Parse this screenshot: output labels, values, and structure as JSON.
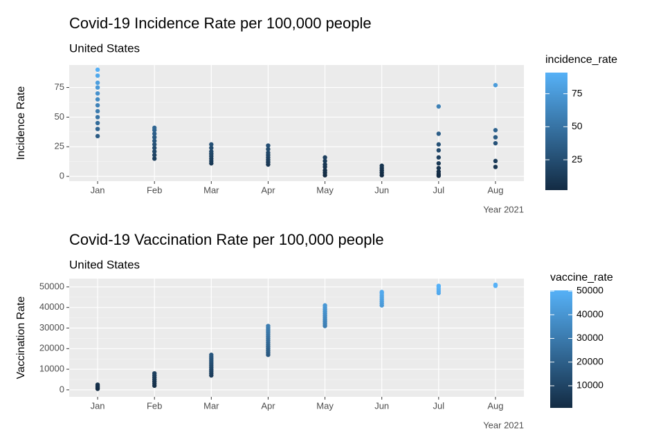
{
  "chart_data": [
    {
      "type": "scatter",
      "title": "Covid-19 Incidence Rate per 100,000 people",
      "subtitle": "United States",
      "x_label": "Year 2021",
      "y_label": "Incidence Rate",
      "categories": [
        "Jan",
        "Feb",
        "Mar",
        "Apr",
        "May",
        "Jun",
        "Jul",
        "Aug"
      ],
      "x": [
        "Jan",
        "Jan",
        "Jan",
        "Jan",
        "Jan",
        "Jan",
        "Jan",
        "Jan",
        "Jan",
        "Jan",
        "Jan",
        "Jan",
        "Feb",
        "Feb",
        "Feb",
        "Feb",
        "Feb",
        "Feb",
        "Feb",
        "Feb",
        "Feb",
        "Feb",
        "Mar",
        "Mar",
        "Mar",
        "Mar",
        "Mar",
        "Mar",
        "Mar",
        "Mar",
        "Apr",
        "Apr",
        "Apr",
        "Apr",
        "Apr",
        "Apr",
        "Apr",
        "Apr",
        "May",
        "May",
        "May",
        "May",
        "May",
        "May",
        "May",
        "Jun",
        "Jun",
        "Jun",
        "Jun",
        "Jun",
        "Jul",
        "Jul",
        "Jul",
        "Jul",
        "Jul",
        "Jul",
        "Jul",
        "Jul",
        "Jul",
        "Jul",
        "Aug",
        "Aug",
        "Aug",
        "Aug",
        "Aug",
        "Aug"
      ],
      "values": [
        34,
        40,
        45,
        50,
        55,
        60,
        65,
        70,
        75,
        79,
        85,
        90,
        15,
        18,
        21,
        24,
        27,
        30,
        33,
        36,
        39,
        41,
        11,
        13,
        15,
        17,
        19,
        21,
        24,
        27,
        10,
        12,
        14,
        16,
        18,
        20,
        23,
        26,
        1,
        3,
        5,
        8,
        10,
        13,
        16,
        1,
        3,
        5,
        7,
        9,
        0.5,
        2,
        4,
        7,
        11,
        16,
        22,
        27,
        36,
        59,
        8,
        13,
        28,
        33,
        39,
        77
      ],
      "ylim": [
        -4,
        94
      ],
      "yticks": [
        0,
        25,
        50,
        75
      ],
      "grid": true,
      "colorbar": {
        "title": "incidence_rate",
        "lim": [
          2,
          91
        ],
        "ticks": [
          25,
          50,
          75
        ],
        "colors": [
          "#132B43",
          "#56B1F7"
        ]
      }
    },
    {
      "type": "scatter",
      "title": "Covid-19 Vaccination Rate per 100,000 people",
      "subtitle": "United States",
      "x_label": "Year 2021",
      "y_label": "Vaccination Rate",
      "categories": [
        "Jan",
        "Feb",
        "Mar",
        "Apr",
        "May",
        "Jun",
        "Jul",
        "Aug"
      ],
      "x": [
        "Jan",
        "Jan",
        "Jan",
        "Jan",
        "Jan",
        "Feb",
        "Feb",
        "Feb",
        "Feb",
        "Feb",
        "Feb",
        "Feb",
        "Mar",
        "Mar",
        "Mar",
        "Mar",
        "Mar",
        "Mar",
        "Mar",
        "Mar",
        "Mar",
        "Mar",
        "Mar",
        "Apr",
        "Apr",
        "Apr",
        "Apr",
        "Apr",
        "Apr",
        "Apr",
        "Apr",
        "Apr",
        "Apr",
        "Apr",
        "Apr",
        "Apr",
        "Apr",
        "Apr",
        "May",
        "May",
        "May",
        "May",
        "May",
        "May",
        "May",
        "May",
        "May",
        "May",
        "May",
        "Jun",
        "Jun",
        "Jun",
        "Jun",
        "Jun",
        "Jun",
        "Jun",
        "Jun",
        "Jul",
        "Jul",
        "Jul",
        "Jul",
        "Jul",
        "Aug",
        "Aug"
      ],
      "values": [
        500,
        1000,
        1500,
        2000,
        2500,
        2000,
        3000,
        4000,
        5000,
        6000,
        7000,
        8000,
        7000,
        8000,
        9000,
        10000,
        11000,
        12000,
        13000,
        14000,
        15000,
        16000,
        17000,
        17000,
        18000,
        19000,
        20000,
        21000,
        22000,
        23000,
        24000,
        25000,
        26000,
        27000,
        28000,
        29000,
        30000,
        31000,
        31000,
        32000,
        33000,
        34000,
        35000,
        36000,
        37000,
        38000,
        39000,
        40000,
        41000,
        41000,
        42000,
        43000,
        44000,
        45000,
        46000,
        47000,
        47500,
        47000,
        48000,
        49000,
        50000,
        50500,
        50500,
        51000
      ],
      "ylim": [
        -3400,
        54000
      ],
      "yticks": [
        0,
        10000,
        20000,
        30000,
        40000,
        50000
      ],
      "grid": true,
      "colorbar": {
        "title": "vaccine_rate",
        "lim": [
          650,
          50300
        ],
        "ticks": [
          10000,
          20000,
          30000,
          40000,
          50000
        ],
        "colors": [
          "#132B43",
          "#56B1F7"
        ]
      }
    }
  ]
}
